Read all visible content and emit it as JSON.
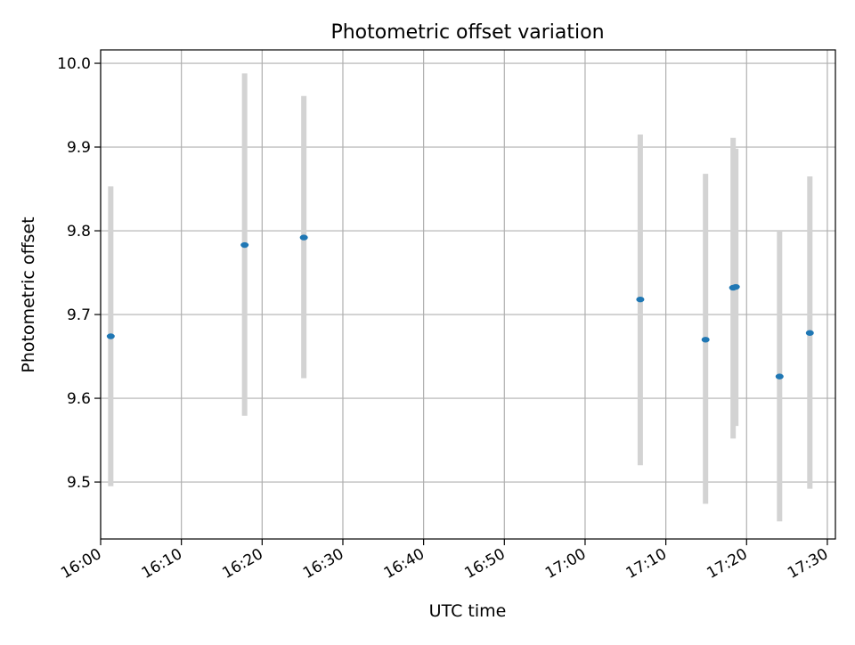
{
  "chart_data": {
    "type": "scatter",
    "title": "Photometric offset variation",
    "xlabel": "UTC time",
    "ylabel": "Photometric offset",
    "xlim": [
      "16:00",
      "17:31"
    ],
    "ylim": [
      9.432,
      10.016
    ],
    "x_ticks": [
      "16:00",
      "16:10",
      "16:20",
      "16:30",
      "16:40",
      "16:50",
      "17:00",
      "17:10",
      "17:20",
      "17:30"
    ],
    "y_ticks": [
      "9.5",
      "9.6",
      "9.7",
      "9.8",
      "9.9",
      "10.0"
    ],
    "grid": true,
    "legend": "none",
    "point_color": "#1f77b4",
    "errorbar_color": "#d3d3d3",
    "points": [
      {
        "x": "16:01:15",
        "y": 9.674,
        "y_low": 9.495,
        "y_high": 9.853
      },
      {
        "x": "16:17:50",
        "y": 9.783,
        "y_low": 9.579,
        "y_high": 9.988
      },
      {
        "x": "16:25:10",
        "y": 9.792,
        "y_low": 9.624,
        "y_high": 9.961
      },
      {
        "x": "17:06:50",
        "y": 9.718,
        "y_low": 9.52,
        "y_high": 9.915
      },
      {
        "x": "17:14:55",
        "y": 9.67,
        "y_low": 9.474,
        "y_high": 9.868
      },
      {
        "x": "17:18:20",
        "y": 9.732,
        "y_low": 9.552,
        "y_high": 9.911
      },
      {
        "x": "17:18:40",
        "y": 9.733,
        "y_low": 9.567,
        "y_high": 9.898
      },
      {
        "x": "17:24:05",
        "y": 9.626,
        "y_low": 9.453,
        "y_high": 9.8
      },
      {
        "x": "17:27:50",
        "y": 9.678,
        "y_low": 9.492,
        "y_high": 9.865
      }
    ]
  }
}
